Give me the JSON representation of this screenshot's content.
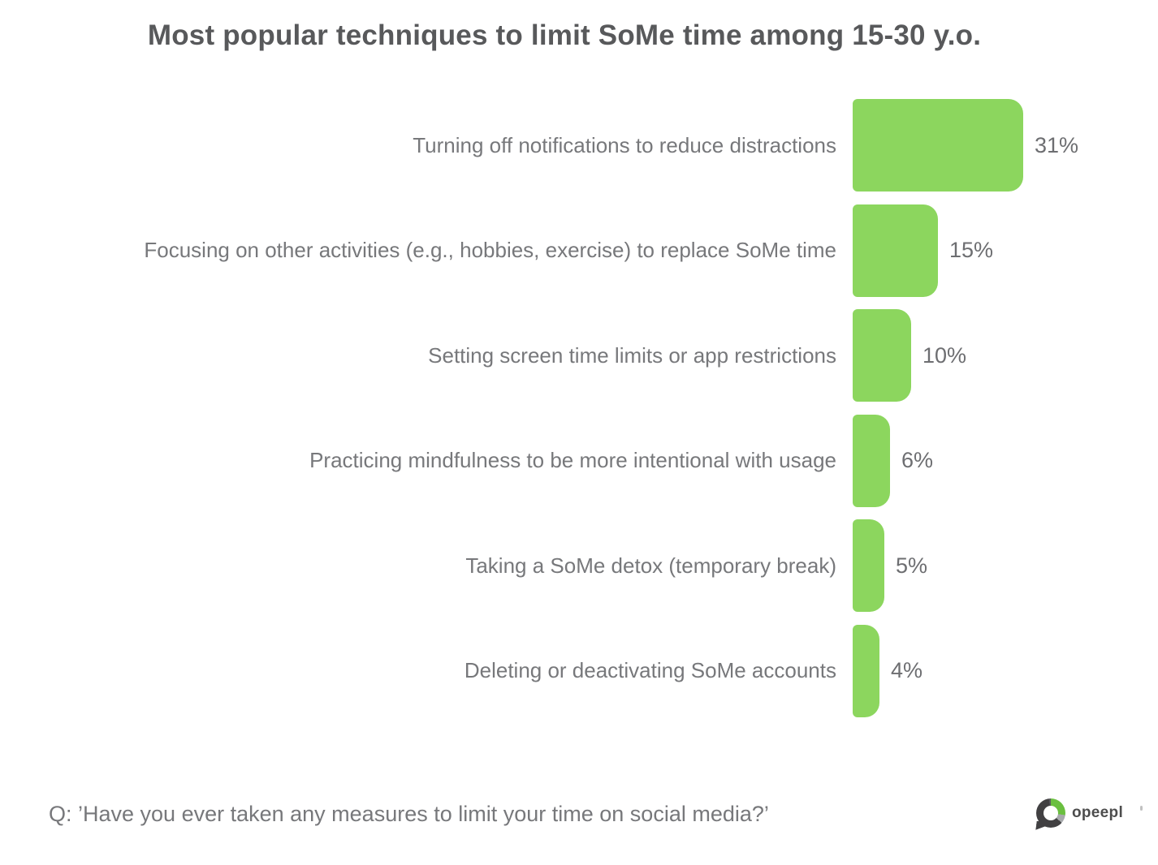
{
  "title": "Most popular techniques to limit SoMe time among 15-30 y.o.",
  "chart_data": {
    "type": "bar",
    "orientation": "horizontal",
    "title": "Most popular techniques to limit SoMe time among 15-30 y.o.",
    "categories": [
      "Turning off notifications to reduce distractions",
      "Focusing on other activities (e.g., hobbies, exercise) to replace SoMe time",
      "Setting screen time limits or app restrictions",
      "Practicing mindfulness to be more intentional with usage",
      "Taking a SoMe detox (temporary break)",
      "Deleting or deactivating SoMe accounts"
    ],
    "values": [
      31,
      15,
      10,
      6,
      5,
      4
    ],
    "value_suffix": "%",
    "xlim": [
      0,
      33
    ],
    "grid": false,
    "legend": false,
    "bar_color": "#8cd65e",
    "label_color": "#77787b",
    "value_label_color": "#6d6e71",
    "title_color": "#58595b"
  },
  "footer": {
    "question": "Q: ’Have you ever taken any measures to limit your time on social media?’"
  },
  "logo": {
    "text": "opeepl",
    "ring_dark": "#414042",
    "ring_green": "#6abf3f",
    "ring_gray": "#a7a9ac",
    "text_color": "#4d4d4d"
  }
}
